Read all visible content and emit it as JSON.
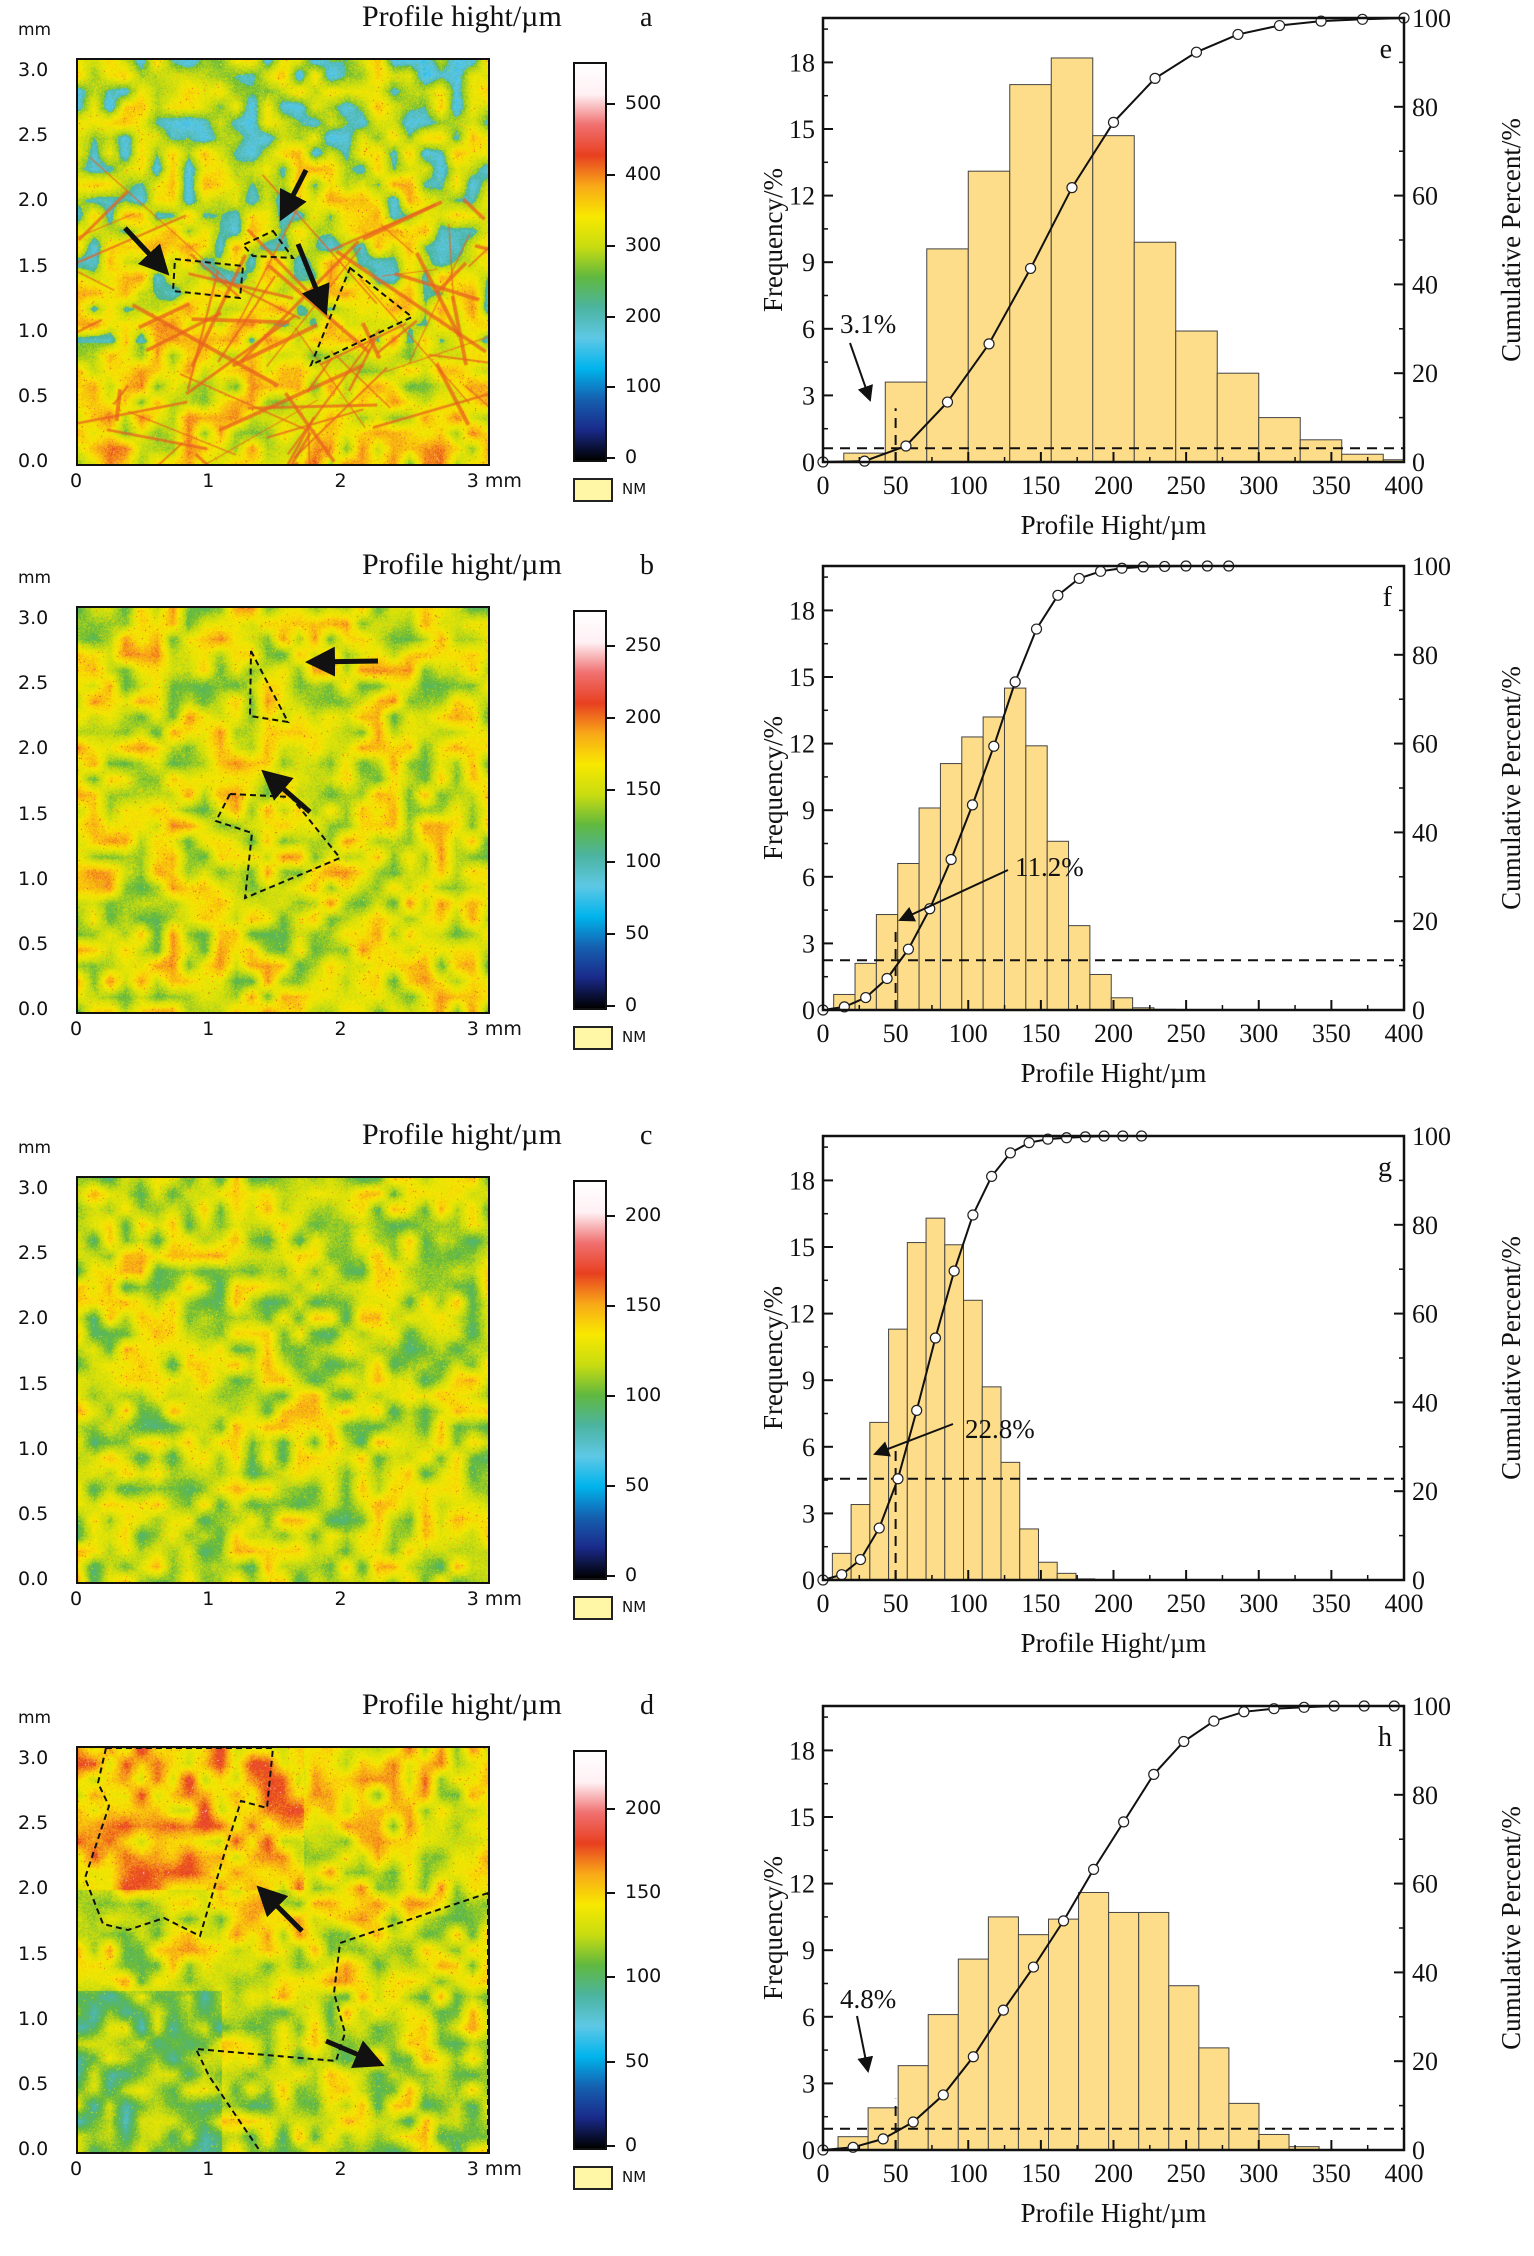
{
  "maps": [
    {
      "letter": "a",
      "title": "Profile hight/µm",
      "y_unit": "mm",
      "x_unit": "3 mm",
      "x_ticks": [
        "0",
        "1",
        "2"
      ],
      "y_ticks": [
        "3.0",
        "2.5",
        "2.0",
        "1.5",
        "1.0",
        "0.5",
        "0.0"
      ],
      "colorbar_ticks": [
        "500",
        "400",
        "300",
        "200",
        "100",
        "0"
      ],
      "colorbar_max": 560,
      "legend_nm": "NM",
      "dominant_color": "#f5e000",
      "annotations": [
        "dashed-triangle",
        "dashed-rectangle",
        "dashed-triangle-large",
        "arrow",
        "arrow",
        "arrow"
      ]
    },
    {
      "letter": "b",
      "title": "Profile hight/µm",
      "y_unit": "mm",
      "x_unit": "3 mm",
      "x_ticks": [
        "0",
        "1",
        "2"
      ],
      "y_ticks": [
        "3.0",
        "2.5",
        "2.0",
        "1.5",
        "1.0",
        "0.5",
        "0.0"
      ],
      "colorbar_ticks": [
        "250",
        "200",
        "150",
        "100",
        "50",
        "0"
      ],
      "colorbar_max": 275,
      "legend_nm": "NM",
      "dominant_color": "#f5e000",
      "annotations": [
        "dashed-triangle",
        "dashed-pentagon",
        "arrow",
        "arrow"
      ]
    },
    {
      "letter": "c",
      "title": "Profile hight/µm",
      "y_unit": "mm",
      "x_unit": "3 mm",
      "x_ticks": [
        "0",
        "1",
        "2"
      ],
      "y_ticks": [
        "3.0",
        "2.5",
        "2.0",
        "1.5",
        "1.0",
        "0.5",
        "0.0"
      ],
      "colorbar_ticks": [
        "200",
        "150",
        "100",
        "50",
        "0"
      ],
      "colorbar_max": 220,
      "legend_nm": "NM",
      "dominant_color": "#e8e000",
      "annotations": []
    },
    {
      "letter": "d",
      "title": "Profile hight/µm",
      "y_unit": "mm",
      "x_unit": "3 mm",
      "x_ticks": [
        "0",
        "1",
        "2"
      ],
      "y_ticks": [
        "3.0",
        "2.5",
        "2.0",
        "1.5",
        "1.0",
        "0.5",
        "0.0"
      ],
      "colorbar_ticks": [
        "200",
        "150",
        "100",
        "50",
        "0"
      ],
      "colorbar_max": 235,
      "legend_nm": "NM",
      "dominant_color": "#f5e000",
      "annotations": [
        "dashed-region-top",
        "dashed-region-right",
        "arrow",
        "arrow"
      ]
    }
  ],
  "colors": {
    "bar_fill": "#fddc8a",
    "bar_stroke": "#444444",
    "line": "#111111",
    "marker_fill": "#ffffff",
    "colormap": [
      "#000000",
      "#1a2a8a",
      "#1560b0",
      "#00b4ec",
      "#5ec8e6",
      "#4cb4a0",
      "#60b840",
      "#c8dc10",
      "#f8e800",
      "#f8a818",
      "#e84020",
      "#f07070",
      "#fff0f4",
      "#ffffff"
    ]
  },
  "chart_data": [
    {
      "type": "bar",
      "panel": "e",
      "xlabel": "Profile Hight/µm",
      "ylabel": "Frequency/%",
      "y2label": "Cumulative Percent/%",
      "xlim": [
        0,
        400
      ],
      "ylim": [
        0,
        20
      ],
      "y2lim": [
        0,
        100
      ],
      "x_ticks": [
        "0",
        "50",
        "100",
        "150",
        "200",
        "250",
        "300",
        "350",
        "400"
      ],
      "y_ticks": [
        "0",
        "3",
        "6",
        "9",
        "12",
        "15",
        "18"
      ],
      "y2_ticks": [
        "0",
        "20",
        "40",
        "60",
        "80",
        "100"
      ],
      "bin_start": 14.3,
      "bin_width": 28.57,
      "values": [
        0.4,
        3.6,
        9.6,
        13.1,
        17.0,
        18.2,
        14.7,
        9.9,
        5.9,
        4.0,
        2.0,
        1.0,
        0.35,
        0.1
      ],
      "cumulative": {
        "x": [
          0,
          28.6,
          57.1,
          85.7,
          114.3,
          142.9,
          171.4,
          200,
          228.6,
          257.1,
          285.7,
          314.3,
          342.9,
          371.4,
          400
        ],
        "y": [
          0,
          0.2,
          3.6,
          13.5,
          26.6,
          43.6,
          61.8,
          76.5,
          86.4,
          92.3,
          96.3,
          98.3,
          99.3,
          99.7,
          100
        ]
      },
      "threshold_x": 50,
      "threshold_pct": 3.1,
      "annotation": "3.1%"
    },
    {
      "type": "bar",
      "panel": "f",
      "xlabel": "Profile Hight/µm",
      "ylabel": "Frequency/%",
      "y2label": "Cumulative Percent/%",
      "xlim": [
        0,
        400
      ],
      "ylim": [
        0,
        20
      ],
      "y2lim": [
        0,
        100
      ],
      "x_ticks": [
        "0",
        "50",
        "100",
        "150",
        "200",
        "250",
        "300",
        "350",
        "400"
      ],
      "y_ticks": [
        "0",
        "3",
        "6",
        "9",
        "12",
        "15",
        "18"
      ],
      "y2_ticks": [
        "0",
        "20",
        "40",
        "60",
        "80",
        "100"
      ],
      "bin_start": 7.35,
      "bin_width": 14.7,
      "values": [
        0.7,
        2.1,
        4.3,
        6.6,
        9.1,
        11.1,
        12.3,
        13.2,
        14.5,
        11.9,
        7.6,
        3.8,
        1.6,
        0.55,
        0.1,
        0.03
      ],
      "cumulative": {
        "x": [
          0,
          14.7,
          29.4,
          44.1,
          58.8,
          73.5,
          88.2,
          102.9,
          117.6,
          132.3,
          147,
          161.7,
          176.4,
          191.1,
          205.8,
          220.5,
          235.2,
          249.9,
          264.6,
          279.3
        ],
        "y": [
          0,
          0.7,
          2.8,
          7.1,
          13.7,
          22.8,
          33.9,
          46.2,
          59.4,
          73.9,
          85.8,
          93.4,
          97.2,
          98.8,
          99.5,
          99.8,
          99.9,
          100,
          100,
          100
        ]
      },
      "threshold_x": 50,
      "threshold_pct": 11.2,
      "annotation": "11.2%"
    },
    {
      "type": "bar",
      "panel": "g",
      "xlabel": "Profile Hight/µm",
      "ylabel": "Frequency/%",
      "y2label": "Cumulative Percent/%",
      "xlim": [
        0,
        400
      ],
      "ylim": [
        0,
        20
      ],
      "y2lim": [
        0,
        100
      ],
      "x_ticks": [
        "0",
        "50",
        "100",
        "150",
        "200",
        "250",
        "300",
        "350",
        "400"
      ],
      "y_ticks": [
        "0",
        "3",
        "6",
        "9",
        "12",
        "15",
        "18"
      ],
      "y2_ticks": [
        "0",
        "20",
        "40",
        "60",
        "80",
        "100"
      ],
      "bin_start": 6.45,
      "bin_width": 12.9,
      "values": [
        1.2,
        3.4,
        7.1,
        11.3,
        15.2,
        16.3,
        15.1,
        12.6,
        8.7,
        5.3,
        2.3,
        0.8,
        0.3,
        0.05
      ],
      "cumulative": {
        "x": [
          0,
          12.9,
          25.8,
          38.7,
          51.6,
          64.5,
          77.4,
          90.3,
          103.2,
          116.1,
          129,
          141.9,
          154.8,
          167.7,
          180.6,
          193.5,
          206.4,
          219.3
        ],
        "y": [
          0,
          1.2,
          4.6,
          11.7,
          22.8,
          38.2,
          54.5,
          69.6,
          82.2,
          90.9,
          96.2,
          98.5,
          99.3,
          99.6,
          99.8,
          100,
          100,
          100
        ]
      },
      "threshold_x": 50,
      "threshold_pct": 22.8,
      "annotation": "22.8%"
    },
    {
      "type": "bar",
      "panel": "h",
      "xlabel": "Profile Hight/µm",
      "ylabel": "Frequency/%",
      "y2label": "Cumulative Percent/%",
      "xlim": [
        0,
        400
      ],
      "ylim": [
        0,
        20
      ],
      "y2lim": [
        0,
        100
      ],
      "x_ticks": [
        "0",
        "50",
        "100",
        "150",
        "200",
        "250",
        "300",
        "350",
        "400"
      ],
      "y_ticks": [
        "0",
        "3",
        "6",
        "9",
        "12",
        "15",
        "18"
      ],
      "y2_ticks": [
        "0",
        "20",
        "40",
        "60",
        "80",
        "100"
      ],
      "bin_start": 10.35,
      "bin_width": 20.7,
      "values": [
        0.6,
        1.9,
        3.8,
        6.1,
        8.6,
        10.5,
        9.7,
        10.4,
        11.6,
        10.7,
        10.7,
        7.4,
        4.6,
        2.1,
        0.7,
        0.15
      ],
      "cumulative": {
        "x": [
          0,
          20.7,
          41.4,
          62.1,
          82.8,
          103.5,
          124.2,
          144.9,
          165.6,
          186.3,
          207,
          227.7,
          248.4,
          269.1,
          289.8,
          310.5,
          331.2,
          351.9,
          372.6,
          393.3
        ],
        "y": [
          0,
          0.6,
          2.5,
          6.3,
          12.4,
          21.0,
          31.5,
          41.2,
          51.6,
          63.2,
          73.9,
          84.6,
          92.0,
          96.6,
          98.7,
          99.4,
          99.7,
          100,
          100,
          100
        ]
      },
      "threshold_x": 50,
      "threshold_pct": 4.8,
      "annotation": "4.8%"
    }
  ]
}
